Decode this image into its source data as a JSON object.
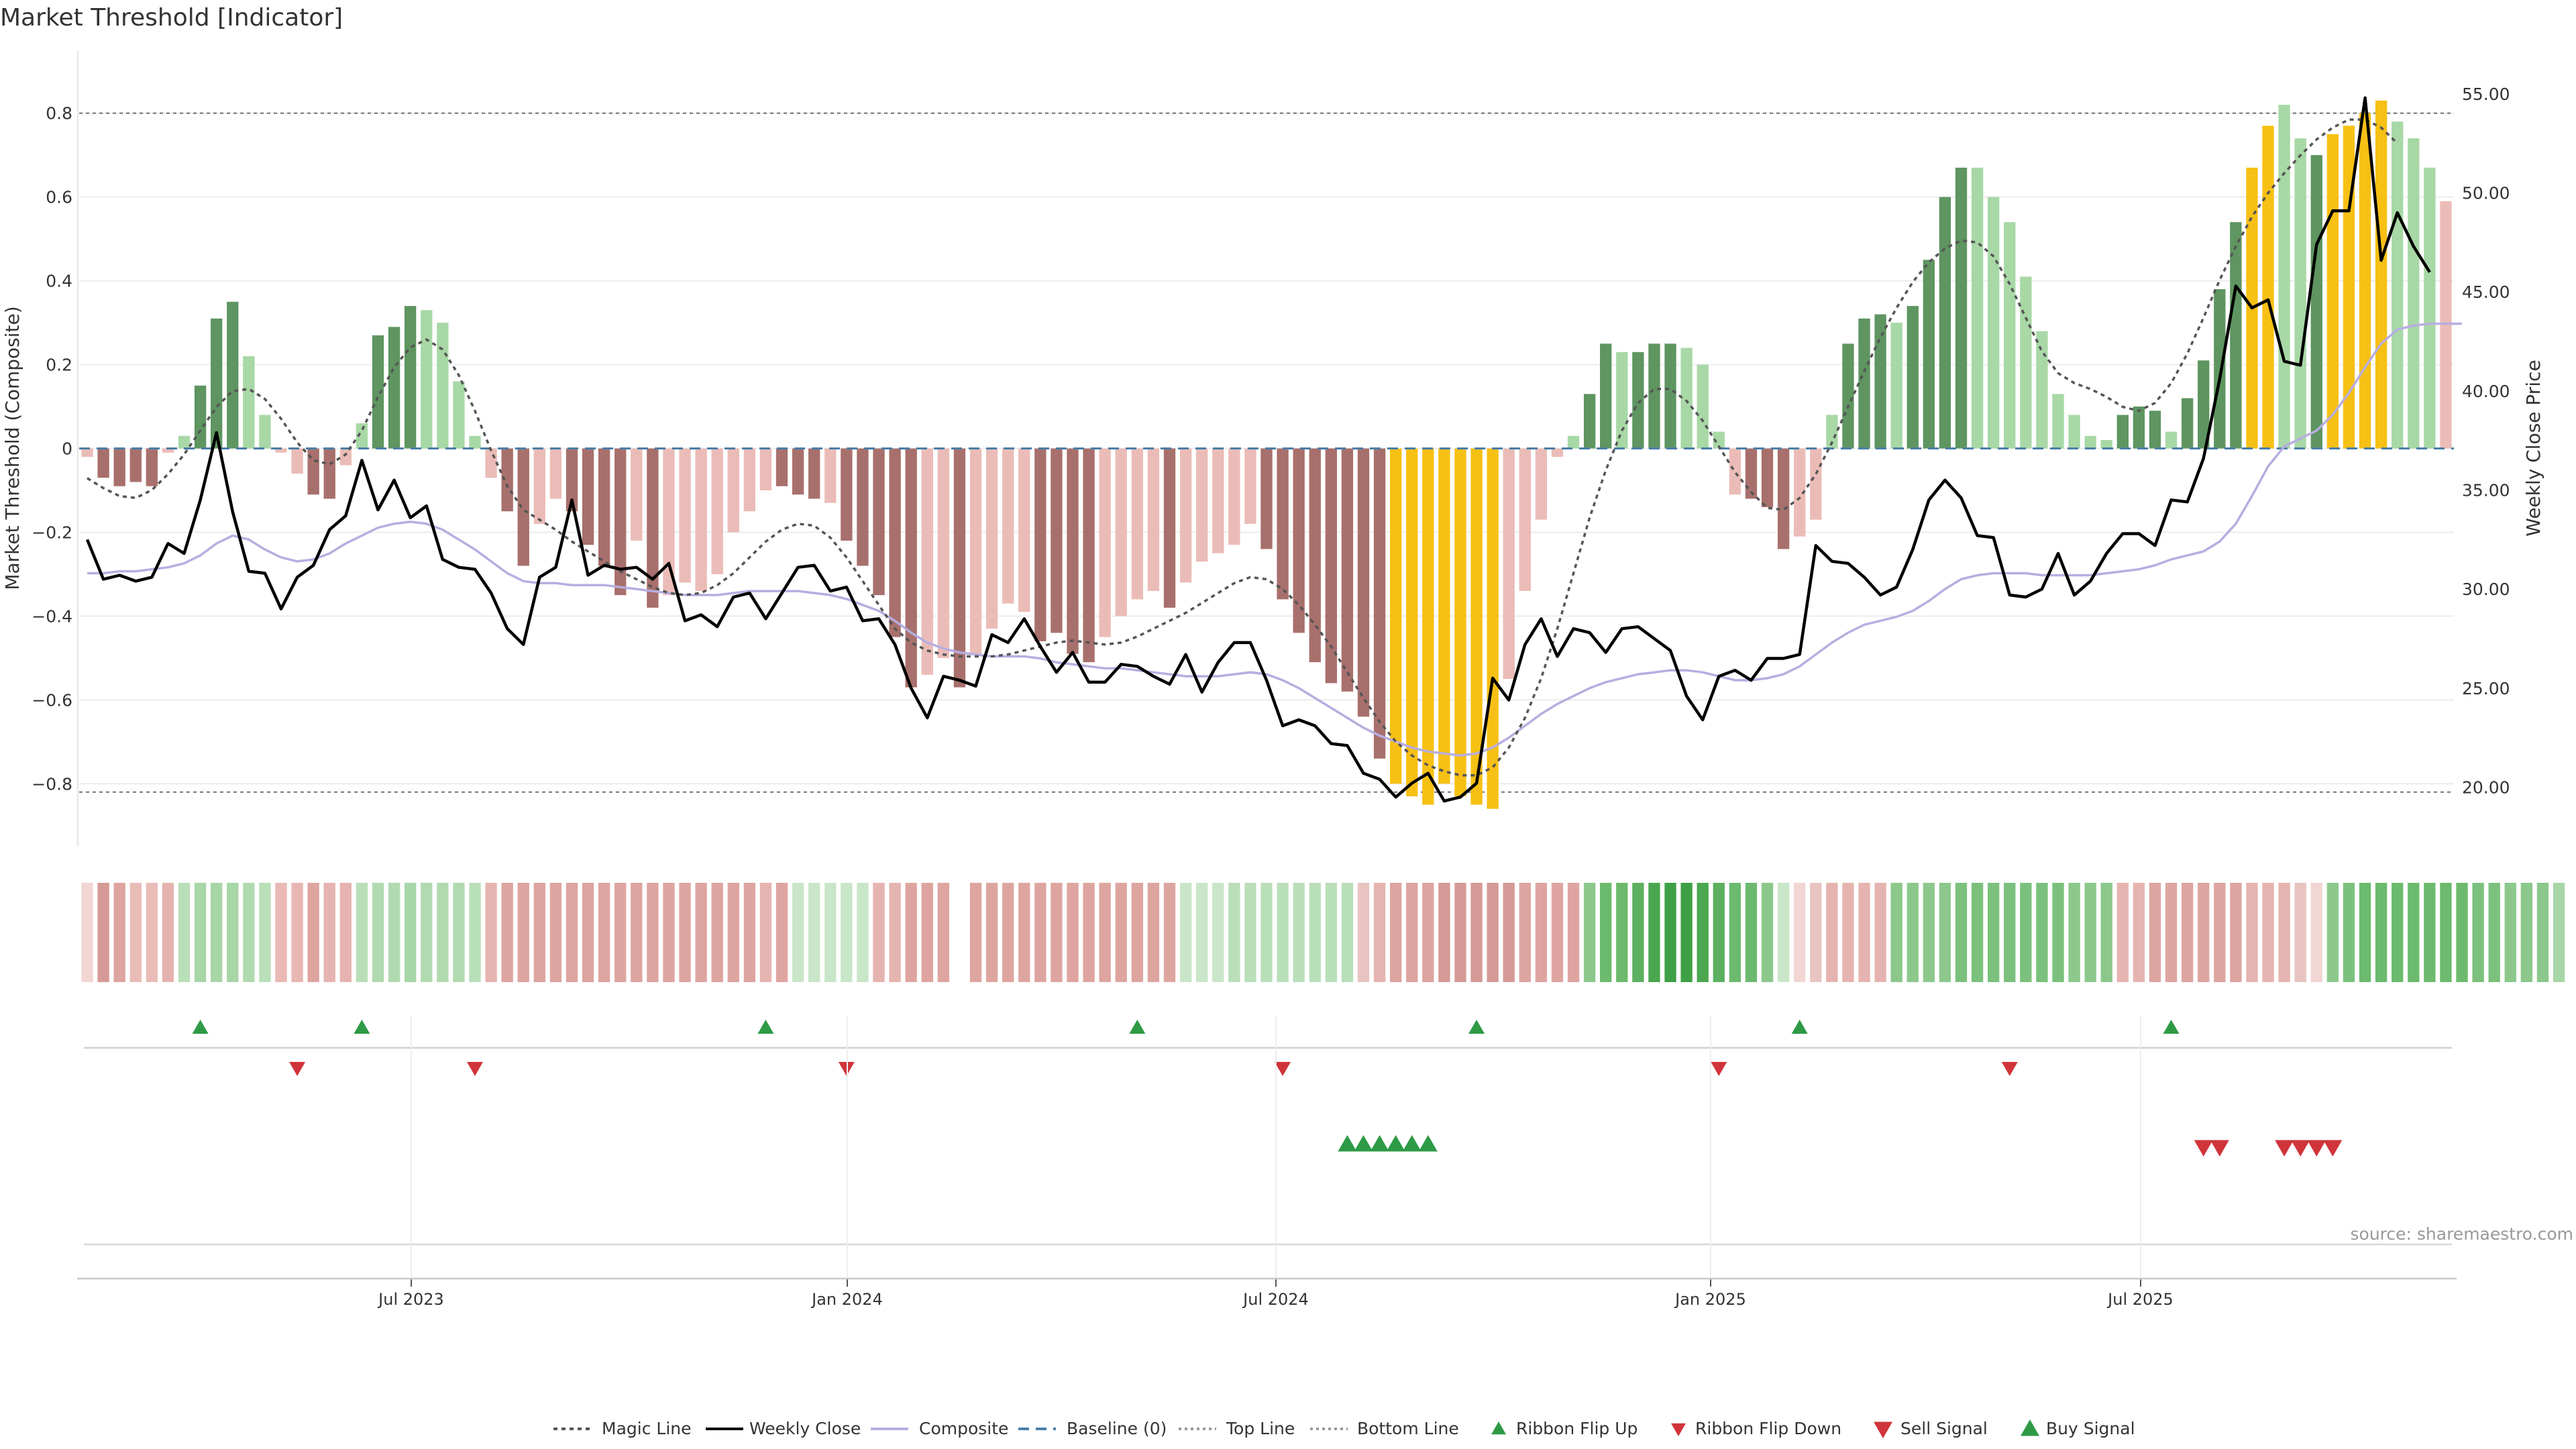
{
  "chart_data": {
    "type": "bar",
    "title": "Market Threshold [Indicator]",
    "ylabel_left": "Market Threshold (Composite)",
    "ylabel_right": "Weekly Close Price",
    "source": "source: sharemaestro.com",
    "ylim_left": [
      -0.95,
      0.95
    ],
    "ylim_right": [
      17.0,
      57.2
    ],
    "left_ticks": [
      "0.8",
      "0.6",
      "0.4",
      "0.2",
      "0",
      "−0.2",
      "−0.4",
      "−0.6",
      "−0.8"
    ],
    "right_ticks": [
      "55.00",
      "50.00",
      "45.00",
      "40.00",
      "35.00",
      "30.00",
      "25.00",
      "20.00"
    ],
    "x_ticks": [
      "Jul 2023",
      "Jan 2024",
      "Jul 2024",
      "Jan 2025",
      "Jul 2025"
    ],
    "top_line": 0.8,
    "bottom_line": -0.82,
    "grid": true,
    "legend_position": "bottom-center",
    "colors": {
      "pos_strong": "#5e9560",
      "pos_weak": "#a8d8a6",
      "neg_strong": "#a8706c",
      "neg_weak": "#ebbcb7",
      "extreme": "#f7c014",
      "weekly_close": "#000000",
      "magic_line": "#555555",
      "composite": "#b6aee0",
      "baseline": "#4a7fa8",
      "ribbon_up": "#2e9a46",
      "ribbon_down": "#d0343a"
    },
    "composite_bars": [
      -0.02,
      -0.07,
      -0.09,
      -0.08,
      -0.09,
      -0.01,
      0.03,
      0.15,
      0.31,
      0.35,
      0.22,
      0.08,
      -0.01,
      -0.06,
      -0.11,
      -0.12,
      -0.04,
      0.06,
      0.27,
      0.29,
      0.34,
      0.33,
      0.3,
      0.16,
      0.03,
      -0.07,
      -0.15,
      -0.28,
      -0.18,
      -0.12,
      -0.15,
      -0.23,
      -0.28,
      -0.35,
      -0.22,
      -0.38,
      -0.35,
      -0.32,
      -0.34,
      -0.3,
      -0.2,
      -0.15,
      -0.1,
      -0.09,
      -0.11,
      -0.12,
      -0.13,
      -0.22,
      -0.28,
      -0.35,
      -0.45,
      -0.57,
      -0.54,
      -0.5,
      -0.57,
      -0.49,
      -0.43,
      -0.37,
      -0.39,
      -0.46,
      -0.44,
      -0.49,
      -0.51,
      -0.45,
      -0.4,
      -0.36,
      -0.34,
      -0.38,
      -0.32,
      -0.27,
      -0.25,
      -0.23,
      -0.18,
      -0.24,
      -0.36,
      -0.44,
      -0.51,
      -0.56,
      -0.58,
      -0.64,
      -0.74,
      -0.8,
      -0.83,
      -0.85,
      -0.8,
      -0.83,
      -0.85,
      -0.86,
      -0.55,
      -0.34,
      -0.17,
      -0.02,
      0.03,
      0.13,
      0.25,
      0.23,
      0.23,
      0.25,
      0.25,
      0.24,
      0.2,
      0.04,
      -0.11,
      -0.12,
      -0.14,
      -0.24,
      -0.21,
      -0.17,
      0.08,
      0.25,
      0.31,
      0.32,
      0.3,
      0.34,
      0.45,
      0.6,
      0.67,
      0.67,
      0.6,
      0.54,
      0.41,
      0.28,
      0.13,
      0.08,
      0.03,
      0.02,
      0.08,
      0.1,
      0.09,
      0.04,
      0.12,
      0.21,
      0.38,
      0.54,
      0.67,
      0.77,
      0.82,
      0.74,
      0.7,
      0.75,
      0.77,
      0.8,
      0.83,
      0.78,
      0.74,
      0.67,
      0.59
    ],
    "bar_color_classes": [
      "nw",
      "ns",
      "ns",
      "ns",
      "ns",
      "nw",
      "pw",
      "ps",
      "ps",
      "ps",
      "pw",
      "pw",
      "nw",
      "nw",
      "ns",
      "ns",
      "nw",
      "pw",
      "ps",
      "ps",
      "ps",
      "pw",
      "pw",
      "pw",
      "pw",
      "nw",
      "ns",
      "ns",
      "nw",
      "nw",
      "ns",
      "ns",
      "ns",
      "ns",
      "nw",
      "ns",
      "nw",
      "nw",
      "nw",
      "nw",
      "nw",
      "nw",
      "nw",
      "ns",
      "ns",
      "ns",
      "nw",
      "ns",
      "ns",
      "ns",
      "ns",
      "ns",
      "nw",
      "nw",
      "ns",
      "nw",
      "nw",
      "nw",
      "nw",
      "ns",
      "ns",
      "ns",
      "ns",
      "nw",
      "nw",
      "nw",
      "nw",
      "ns",
      "nw",
      "nw",
      "nw",
      "nw",
      "nw",
      "ns",
      "ns",
      "ns",
      "ns",
      "ns",
      "ns",
      "ns",
      "ns",
      "ex",
      "ex",
      "ex",
      "ex",
      "ex",
      "ex",
      "ex",
      "nw",
      "nw",
      "nw",
      "nw",
      "pw",
      "ps",
      "ps",
      "pw",
      "ps",
      "ps",
      "ps",
      "pw",
      "pw",
      "pw",
      "nw",
      "ns",
      "ns",
      "ns",
      "nw",
      "nw",
      "pw",
      "ps",
      "ps",
      "ps",
      "pw",
      "ps",
      "ps",
      "ps",
      "ps",
      "pw",
      "pw",
      "pw",
      "pw",
      "pw",
      "pw",
      "pw",
      "pw",
      "pw",
      "ps",
      "ps",
      "ps",
      "pw",
      "ps",
      "ps",
      "ps",
      "ps",
      "ex",
      "ex",
      "pw",
      "pw",
      "ps",
      "ex",
      "ex",
      "ex",
      "ex",
      "pw",
      "pw",
      "pw"
    ],
    "weekly_close": [
      32.5,
      30.5,
      30.7,
      30.4,
      30.6,
      32.3,
      31.8,
      34.5,
      37.9,
      33.9,
      30.9,
      30.8,
      29.0,
      30.6,
      31.2,
      33.0,
      33.7,
      36.5,
      34.0,
      35.5,
      33.6,
      34.2,
      31.5,
      31.1,
      31.0,
      29.8,
      28.0,
      27.2,
      30.6,
      31.1,
      34.5,
      30.7,
      31.2,
      31.0,
      31.1,
      30.5,
      31.3,
      28.4,
      28.7,
      28.1,
      29.6,
      29.8,
      28.5,
      29.8,
      31.1,
      31.2,
      29.9,
      30.1,
      28.4,
      28.5,
      27.2,
      25.0,
      23.5,
      25.6,
      25.4,
      25.1,
      27.7,
      27.3,
      28.5,
      27.1,
      25.8,
      26.8,
      25.3,
      25.3,
      26.2,
      26.1,
      25.6,
      25.2,
      26.7,
      24.8,
      26.3,
      27.3,
      27.3,
      25.4,
      23.1,
      23.4,
      23.1,
      22.2,
      22.1,
      20.7,
      20.4,
      19.5,
      20.2,
      20.7,
      19.3,
      19.5,
      20.2,
      25.5,
      24.4,
      27.2,
      28.5,
      26.6,
      28.0,
      27.8,
      26.8,
      28.0,
      28.1,
      27.5,
      26.9,
      24.6,
      23.4,
      25.6,
      25.9,
      25.4,
      26.5,
      26.5,
      26.7,
      32.2,
      31.4,
      31.3,
      30.6,
      29.7,
      30.1,
      32.0,
      34.5,
      35.5,
      34.6,
      32.7,
      32.6,
      29.7,
      29.6,
      30.0,
      31.8,
      29.7,
      30.4,
      31.8,
      32.8,
      32.8,
      32.2,
      34.5,
      34.4,
      36.6,
      40.6,
      45.3,
      44.2,
      44.6,
      41.5,
      41.3,
      47.4,
      49.1,
      49.1,
      54.8,
      46.6,
      49.0,
      47.3,
      46.0
    ],
    "magic_line": [
      35.6,
      35.1,
      34.7,
      34.6,
      35.0,
      35.8,
      36.8,
      38.0,
      39.2,
      40.0,
      40.1,
      39.6,
      38.6,
      37.4,
      36.5,
      36.3,
      36.8,
      38.0,
      39.7,
      41.2,
      42.2,
      42.6,
      42.1,
      40.8,
      39.0,
      37.0,
      35.2,
      34.0,
      33.5,
      33.0,
      32.4,
      31.9,
      31.4,
      30.9,
      30.5,
      30.1,
      29.8,
      29.7,
      29.8,
      30.2,
      30.8,
      31.6,
      32.4,
      33.0,
      33.3,
      33.2,
      32.6,
      31.6,
      30.4,
      29.2,
      28.0,
      27.3,
      26.9,
      26.7,
      26.6,
      26.6,
      26.6,
      26.7,
      26.9,
      27.1,
      27.3,
      27.4,
      27.3,
      27.2,
      27.3,
      27.6,
      28.0,
      28.4,
      28.8,
      29.3,
      29.8,
      30.3,
      30.6,
      30.5,
      30.0,
      29.2,
      28.2,
      27.1,
      25.8,
      24.5,
      23.3,
      22.3,
      21.6,
      21.1,
      20.8,
      20.6,
      20.6,
      21.0,
      22.0,
      23.5,
      25.5,
      28.0,
      30.8,
      33.6,
      36.0,
      38.0,
      39.4,
      40.1,
      40.1,
      39.5,
      38.5,
      37.2,
      35.9,
      34.9,
      34.1,
      34.0,
      34.6,
      35.8,
      37.4,
      39.2,
      41.0,
      42.7,
      44.2,
      45.5,
      46.5,
      47.2,
      47.6,
      47.5,
      46.8,
      45.4,
      43.7,
      42.0,
      40.9,
      40.4,
      40.1,
      39.7,
      39.2,
      39.0,
      39.4,
      40.4,
      41.9,
      43.7,
      45.6,
      47.3,
      48.8,
      50.0,
      51.0,
      51.9,
      52.7,
      53.3,
      53.7,
      53.7,
      53.3,
      52.5
    ],
    "composite_line": [
      30.8,
      30.8,
      30.9,
      30.9,
      31.0,
      31.1,
      31.3,
      31.7,
      32.3,
      32.7,
      32.5,
      32.0,
      31.6,
      31.4,
      31.5,
      31.8,
      32.3,
      32.7,
      33.1,
      33.3,
      33.4,
      33.3,
      33.0,
      32.5,
      32.0,
      31.4,
      30.8,
      30.4,
      30.3,
      30.3,
      30.2,
      30.2,
      30.2,
      30.1,
      30.0,
      29.9,
      29.8,
      29.7,
      29.7,
      29.7,
      29.8,
      29.9,
      29.9,
      29.9,
      29.9,
      29.8,
      29.7,
      29.5,
      29.2,
      28.9,
      28.4,
      27.8,
      27.3,
      27.0,
      26.8,
      26.7,
      26.6,
      26.6,
      26.6,
      26.5,
      26.3,
      26.2,
      26.1,
      26.0,
      26.0,
      25.9,
      25.8,
      25.7,
      25.6,
      25.6,
      25.6,
      25.7,
      25.8,
      25.7,
      25.4,
      25.0,
      24.5,
      24.0,
      23.5,
      23.0,
      22.6,
      22.3,
      22.0,
      21.8,
      21.7,
      21.6,
      21.7,
      22.0,
      22.5,
      23.1,
      23.7,
      24.2,
      24.6,
      25.0,
      25.3,
      25.5,
      25.7,
      25.8,
      25.9,
      25.9,
      25.8,
      25.6,
      25.4,
      25.4,
      25.5,
      25.7,
      26.1,
      26.7,
      27.3,
      27.8,
      28.2,
      28.4,
      28.6,
      28.9,
      29.4,
      30.0,
      30.5,
      30.7,
      30.8,
      30.8,
      30.8,
      30.7,
      30.7,
      30.7,
      30.7,
      30.8,
      30.9,
      31.0,
      31.2,
      31.5,
      31.7,
      31.9,
      32.4,
      33.3,
      34.7,
      36.2,
      37.2,
      37.6,
      38.0,
      38.8,
      39.9,
      41.2,
      42.4,
      43.1,
      43.3,
      43.4,
      43.4,
      43.4
    ],
    "ribbon_colors": [
      "#f1d6d3",
      "#d59a95",
      "#dea5a0",
      "#e9bcb8",
      "#e9bcb8",
      "#e6b4b0",
      "#b9dfb9",
      "#a7d6a7",
      "#a7d6a7",
      "#a7d6a7",
      "#b1dab0",
      "#b9dfb9",
      "#eab9b5",
      "#e8b7b3",
      "#dea5a0",
      "#e6b4b0",
      "#e6b4b0",
      "#b9dfb9",
      "#b1dab0",
      "#b1dab0",
      "#a7d6a7",
      "#b1dab0",
      "#b1dab0",
      "#b1dab0",
      "#b9dfb9",
      "#e6b4b0",
      "#dea5a0",
      "#dea5a0",
      "#dea5a0",
      "#dea5a0",
      "#dea5a0",
      "#dea5a0",
      "#dea5a0",
      "#dea5a0",
      "#dea5a0",
      "#dea5a0",
      "#dea5a0",
      "#dea5a0",
      "#dea5a0",
      "#dea5a0",
      "#dea5a0",
      "#dea5a0",
      "#e6b4b0",
      "#dea5a0",
      "#c9e6c8",
      "#c9e6c8",
      "#c9e6c8",
      "#c9e6c8",
      "#c9e6c8",
      "#e6b4b0",
      "#e6b4b0",
      "#dea5a0",
      "#dea5a0",
      "#dea5a0",
      "#ffffff",
      "#dea5a0",
      "#dea5a0",
      "#dea5a0",
      "#dea5a0",
      "#dea5a0",
      "#dea5a0",
      "#dea5a0",
      "#dea5a0",
      "#dea5a0",
      "#dea5a0",
      "#dea5a0",
      "#dea5a0",
      "#dea5a0",
      "#c9e6c8",
      "#c9e6c8",
      "#c9e6c8",
      "#b9dfb9",
      "#b9dfb9",
      "#b9dfb9",
      "#b9dfb9",
      "#b9dfb9",
      "#b9dfb9",
      "#b9dfb9",
      "#b9dfb9",
      "#e8c4c1",
      "#e6b4b0",
      "#dea5a0",
      "#dea5a0",
      "#dea5a0",
      "#d59a95",
      "#d59a95",
      "#d59a95",
      "#d59a95",
      "#d59a95",
      "#dea5a0",
      "#dea5a0",
      "#dea5a0",
      "#dea5a0",
      "#8cc88c",
      "#6cba6e",
      "#6cba6e",
      "#5cb05f",
      "#4aa74f",
      "#3ea045",
      "#3ea045",
      "#4aa74f",
      "#5cb05f",
      "#6cba6e",
      "#6cba6e",
      "#8cc88c",
      "#c9e6c8",
      "#f1d6d3",
      "#e8c4c1",
      "#e6b4b0",
      "#e6b4b0",
      "#e6b4b0",
      "#e6b4b0",
      "#8cc88c",
      "#8cc88c",
      "#8cc88c",
      "#8cc88c",
      "#7bc17d",
      "#7bc17d",
      "#7bc17d",
      "#7bc17d",
      "#7bc17d",
      "#7bc17d",
      "#7bc17d",
      "#8cc88c",
      "#8cc88c",
      "#8cc88c",
      "#e6b4b0",
      "#e6b4b0",
      "#dea5a0",
      "#dea5a0",
      "#dea5a0",
      "#dea5a0",
      "#dea5a0",
      "#dea5a0",
      "#e6b4b0",
      "#e6b4b0",
      "#e6b4b0",
      "#e8c4c1",
      "#f1d6d3",
      "#8cc88c",
      "#7bc17d",
      "#6cba6e",
      "#6cba6e",
      "#6cba6e",
      "#6cba6e",
      "#6cba6e",
      "#6cba6e",
      "#6cba6e",
      "#7bc17d",
      "#7bc17d",
      "#8cc88c",
      "#8cc88c",
      "#8cc88c",
      "#a7d6a7"
    ],
    "ribbon_flip_up_index": [
      7,
      17,
      42,
      65,
      86,
      106,
      129
    ],
    "ribbon_flip_down_index": [
      13,
      24,
      47,
      74,
      101,
      119
    ],
    "buy_signal_index": [
      78,
      79,
      80,
      81,
      82,
      83
    ],
    "sell_signal_index": [
      131,
      132,
      136,
      137,
      138,
      139
    ],
    "legend": [
      "Magic Line",
      "Weekly Close",
      "Composite",
      "Baseline (0)",
      "Top Line",
      "Bottom Line",
      "Ribbon Flip Up",
      "Ribbon Flip Down",
      "Sell Signal",
      "Buy Signal"
    ]
  }
}
